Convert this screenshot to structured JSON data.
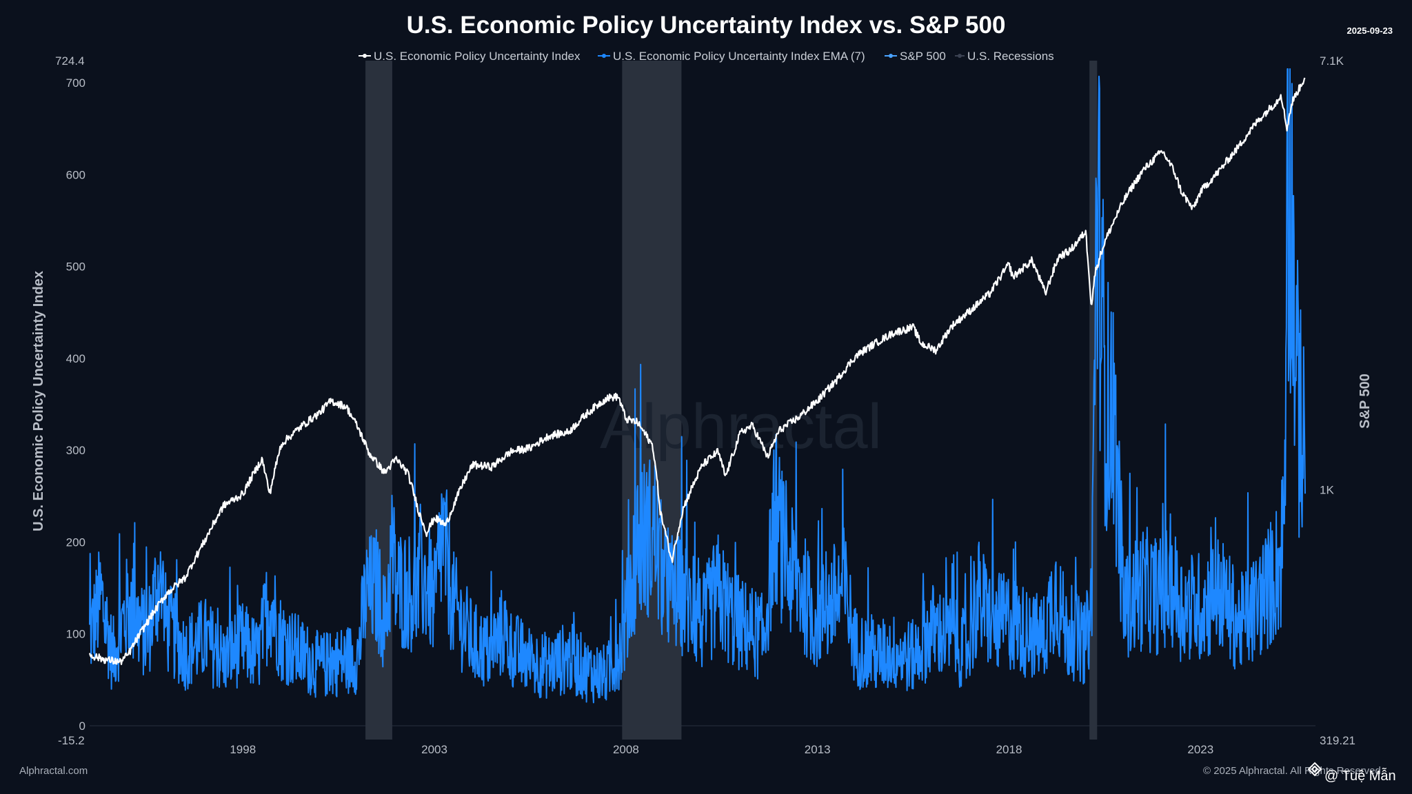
{
  "chart_data": {
    "type": "line",
    "title": "U.S. Economic Policy Uncertainty Index vs. S&P 500",
    "date_stamp": "2025-09-23",
    "x_range": [
      1994.0,
      2026.0
    ],
    "x_ticks": [
      "1998",
      "2003",
      "2008",
      "2013",
      "2018",
      "2023"
    ],
    "y_left": {
      "label": "U.S. Economic Policy Uncertainty Index",
      "range": [
        -15.2,
        724.4
      ],
      "ticks": [
        "0",
        "100",
        "200",
        "300",
        "400",
        "500",
        "600",
        "700"
      ],
      "min_label": "-15.2",
      "max_label": "724.4"
    },
    "y_right": {
      "label": "S&P 500",
      "scale": "log",
      "range": [
        319.21,
        7100
      ],
      "ticks": [
        "1K"
      ],
      "min_label": "319.21",
      "max_label": "7.1K"
    },
    "legend": [
      {
        "name": "U.S. Economic Policy Uncertainty Index",
        "color": "#ffffff"
      },
      {
        "name": "U.S. Economic Policy Uncertainty Index EMA (7)",
        "color": "#1e88ff"
      },
      {
        "name": "S&P 500",
        "color": "#4aa3ff"
      },
      {
        "name": "U.S. Recessions",
        "color": "#3b4252"
      }
    ],
    "recessions": [
      [
        2001.2,
        2001.9
      ],
      [
        2007.9,
        2009.45
      ],
      [
        2020.1,
        2020.3
      ]
    ],
    "series": [
      {
        "name": "S&P 500",
        "color": "#ffffff",
        "axis": "right",
        "x": [
          1994.0,
          1994.4,
          1994.8,
          1995.0,
          1995.5,
          1996.0,
          1996.5,
          1997.0,
          1997.5,
          1998.0,
          1998.5,
          1998.7,
          1999.0,
          1999.5,
          2000.0,
          2000.3,
          2000.7,
          2001.0,
          2001.3,
          2001.7,
          2002.0,
          2002.3,
          2002.6,
          2002.8,
          2003.0,
          2003.3,
          2003.8,
          2004.0,
          2004.5,
          2005.0,
          2005.5,
          2006.0,
          2006.5,
          2007.0,
          2007.5,
          2007.8,
          2008.0,
          2008.3,
          2008.7,
          2008.9,
          2009.2,
          2009.5,
          2010.0,
          2010.4,
          2010.6,
          2011.0,
          2011.3,
          2011.7,
          2012.0,
          2012.5,
          2013.0,
          2013.5,
          2014.0,
          2014.5,
          2015.0,
          2015.5,
          2015.7,
          2016.1,
          2016.5,
          2017.0,
          2017.5,
          2018.0,
          2018.1,
          2018.6,
          2018.95,
          2019.3,
          2019.6,
          2020.0,
          2020.15,
          2020.25,
          2020.5,
          2021.0,
          2021.5,
          2022.0,
          2022.3,
          2022.5,
          2022.8,
          2023.0,
          2023.5,
          2024.0,
          2024.5,
          2025.0,
          2025.1,
          2025.25,
          2025.4,
          2025.6,
          2025.73
        ],
        "y": [
          470,
          460,
          455,
          470,
          545,
          620,
          670,
          790,
          930,
          980,
          1150,
          980,
          1230,
          1330,
          1420,
          1500,
          1460,
          1330,
          1180,
          1080,
          1150,
          1080,
          900,
          820,
          880,
          850,
          1050,
          1120,
          1110,
          1190,
          1210,
          1280,
          1300,
          1420,
          1520,
          1530,
          1380,
          1360,
          1220,
          900,
          720,
          920,
          1120,
          1190,
          1060,
          1300,
          1340,
          1160,
          1310,
          1390,
          1500,
          1650,
          1840,
          1950,
          2050,
          2100,
          1950,
          1890,
          2110,
          2270,
          2450,
          2800,
          2640,
          2850,
          2450,
          2900,
          2980,
          3250,
          2300,
          2700,
          3100,
          3750,
          4300,
          4700,
          4300,
          3900,
          3600,
          3900,
          4300,
          4800,
          5400,
          5900,
          6100,
          5200,
          5900,
          6300,
          6600
        ]
      },
      {
        "name": "U.S. Economic Policy Uncertainty Index EMA (7)",
        "color": "#1e88ff",
        "axis": "left",
        "x": [
          1994.0,
          1994.3,
          1994.6,
          1995.0,
          1995.5,
          1995.8,
          1996.0,
          1996.5,
          1997.0,
          1997.5,
          1998.0,
          1998.4,
          1998.7,
          1999.0,
          1999.5,
          2000.0,
          2000.5,
          2001.0,
          2001.2,
          2001.5,
          2001.7,
          2001.9,
          2002.0,
          2002.5,
          2002.8,
          2003.0,
          2003.2,
          2003.5,
          2004.0,
          2004.5,
          2004.8,
          2005.0,
          2005.5,
          2006.0,
          2006.5,
          2007.0,
          2007.5,
          2007.9,
          2008.3,
          2008.75,
          2009.0,
          2009.5,
          2010.0,
          2010.4,
          2010.8,
          2011.0,
          2011.6,
          2011.9,
          2012.2,
          2012.6,
          2012.9,
          2013.2,
          2013.7,
          2014.0,
          2014.5,
          2015.0,
          2015.5,
          2016.0,
          2016.5,
          2016.9,
          2017.2,
          2017.6,
          2018.0,
          2018.5,
          2018.9,
          2019.2,
          2019.5,
          2019.8,
          2020.0,
          2020.15,
          2020.3,
          2020.5,
          2020.8,
          2021.0,
          2021.5,
          2022.0,
          2022.2,
          2022.5,
          2023.0,
          2023.5,
          2024.0,
          2024.3,
          2024.6,
          2024.9,
          2025.1,
          2025.2,
          2025.25,
          2025.35,
          2025.5,
          2025.65,
          2025.73
        ],
        "y": [
          95,
          140,
          75,
          130,
          95,
          160,
          110,
          80,
          95,
          72,
          90,
          75,
          140,
          95,
          78,
          65,
          70,
          75,
          140,
          150,
          110,
          190,
          150,
          145,
          160,
          130,
          210,
          130,
          90,
          78,
          105,
          85,
          70,
          65,
          75,
          60,
          55,
          90,
          200,
          210,
          150,
          140,
          110,
          145,
          115,
          110,
          95,
          230,
          170,
          150,
          115,
          125,
          150,
          85,
          75,
          80,
          75,
          105,
          95,
          80,
          140,
          110,
          115,
          100,
          95,
          150,
          100,
          95,
          90,
          130,
          580,
          370,
          290,
          130,
          150,
          140,
          160,
          130,
          130,
          145,
          110,
          120,
          140,
          160,
          180,
          260,
          560,
          600,
          380,
          290,
          300
        ]
      }
    ]
  },
  "watermark": "Alphractal",
  "footer_left": "Alphractal.com",
  "footer_right": "© 2025 Alphractal. All Rights Reserved.",
  "credit": "@ Tuệ Mẫn"
}
